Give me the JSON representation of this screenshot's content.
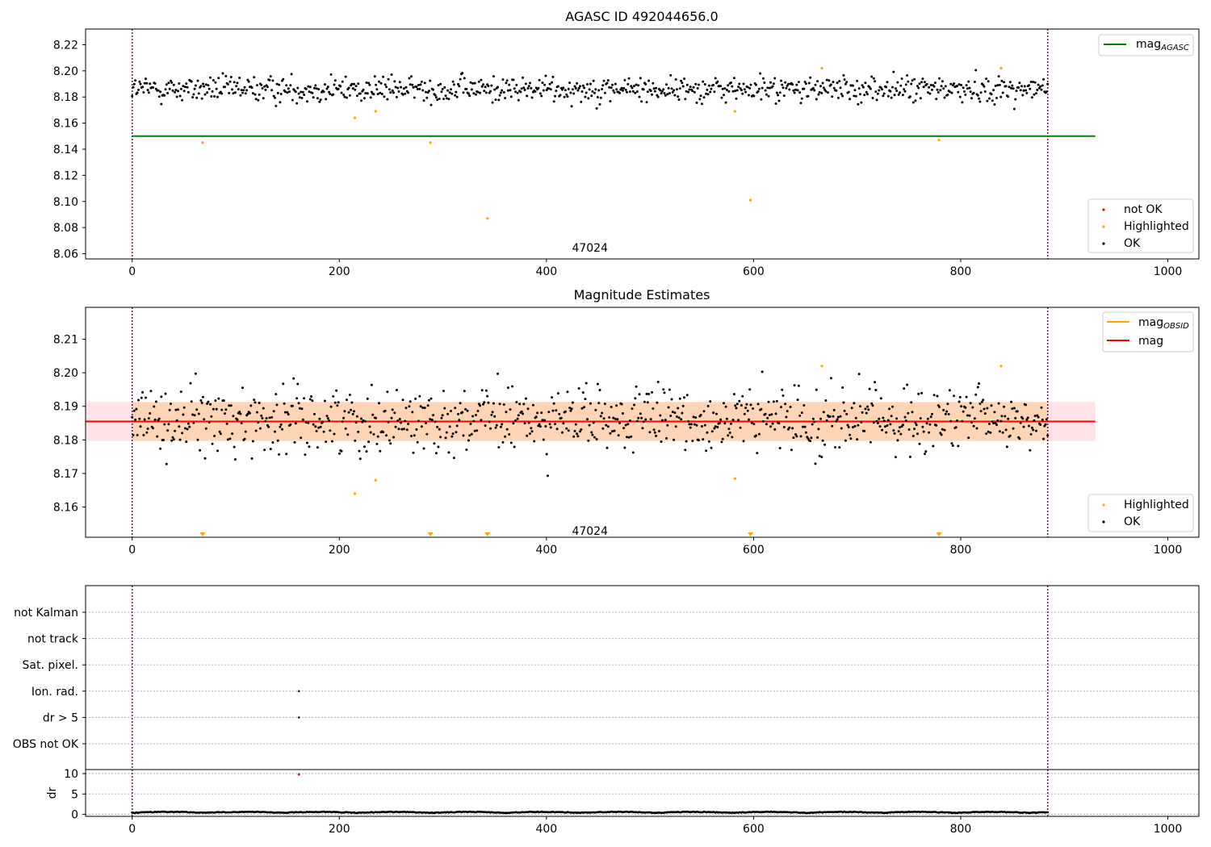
{
  "colors": {
    "ok": "#000000",
    "highlighted": "#ffa500",
    "not_ok": "#ff0000",
    "mag_agasc": "#008000",
    "mag_obsid": "#ffa500",
    "mag": "#ff0000",
    "band_outer": "#ffc0cb",
    "band_inner": "#ffa500",
    "obs_boundary": "#800080"
  },
  "chart_data": [
    {
      "type": "scatter",
      "title": "AGASC ID 492044656.0",
      "xlim": [
        -45,
        1030
      ],
      "ylim": [
        8.056,
        8.232
      ],
      "xticks": [
        "0",
        "200",
        "400",
        "600",
        "800",
        "1000"
      ],
      "yticks": [
        "8.06",
        "8.08",
        "8.10",
        "8.12",
        "8.14",
        "8.16",
        "8.18",
        "8.20",
        "8.22"
      ],
      "annotation": {
        "text": "47024",
        "x": 442,
        "y": 8.064
      },
      "obs_boundaries": [
        0,
        884
      ],
      "mag_agasc": {
        "value": 8.15,
        "x_range": [
          0,
          930
        ]
      },
      "ok_band": {
        "center": 8.186,
        "spread": 0.0055
      },
      "ok_range": [
        0,
        884
      ],
      "ok_count": 880,
      "highlighted": [
        [
          68,
          8.145
        ],
        [
          215,
          8.164
        ],
        [
          235,
          8.169
        ],
        [
          288,
          8.145
        ],
        [
          343,
          8.087
        ],
        [
          582,
          8.169
        ],
        [
          597,
          8.101
        ],
        [
          666,
          8.202
        ],
        [
          779,
          8.147
        ],
        [
          839,
          8.202
        ]
      ],
      "legend_lines": [
        {
          "name": "mag",
          "sub": "AGASC",
          "color": "#008000"
        }
      ],
      "legend_points": [
        {
          "name": "not OK",
          "color": "#ff0000"
        },
        {
          "name": "Highlighted",
          "color": "#ffa500"
        },
        {
          "name": "OK",
          "color": "#000000"
        }
      ]
    },
    {
      "type": "scatter",
      "title": "Magnitude Estimates",
      "xlim": [
        -45,
        1030
      ],
      "ylim": [
        8.151,
        8.2195
      ],
      "xticks": [
        "0",
        "200",
        "400",
        "600",
        "800",
        "1000"
      ],
      "yticks": [
        "8.16",
        "8.17",
        "8.18",
        "8.19",
        "8.20",
        "8.21"
      ],
      "annotation": {
        "text": "47024",
        "x": 442,
        "y": 8.1527
      },
      "obs_boundaries": [
        0,
        884
      ],
      "mag": {
        "value": 8.1855,
        "x_range": [
          -45,
          930
        ]
      },
      "mag_obsid": {
        "value": 8.1855,
        "x_range": [
          0,
          884
        ]
      },
      "band_outer": {
        "lo": 8.1797,
        "hi": 8.1913,
        "x_range": [
          -45,
          930
        ]
      },
      "band_inner": {
        "lo": 8.1797,
        "hi": 8.1913,
        "x_range": [
          0,
          884
        ]
      },
      "ok_band": {
        "center": 8.186,
        "spread": 0.0055
      },
      "ok_range": [
        0,
        884
      ],
      "ok_count": 880,
      "highlighted": [
        [
          215,
          8.164
        ],
        [
          235,
          8.168
        ],
        [
          582,
          8.1685
        ],
        [
          666,
          8.202
        ],
        [
          839,
          8.202
        ]
      ],
      "below_range_markers": [
        68,
        288,
        343,
        597,
        779
      ],
      "legend_lines": [
        {
          "name": "mag",
          "sub": "OBSID",
          "color": "#ffa500"
        },
        {
          "name": "mag",
          "sub": "",
          "color": "#ff0000"
        }
      ],
      "legend_points": [
        {
          "name": "Highlighted",
          "color": "#ffa500"
        },
        {
          "name": "OK",
          "color": "#000000"
        }
      ]
    },
    {
      "type": "scatter",
      "xlim": [
        -45,
        1030
      ],
      "categories": [
        "not Kalman",
        "not track",
        "Sat. pixel.",
        "Ion. rad.",
        "dr > 5",
        "OBS not OK"
      ],
      "flag_points": [
        {
          "category": "Ion. rad.",
          "x": 161
        },
        {
          "category": "dr > 5",
          "x": 161
        }
      ],
      "obs_boundaries": [
        0,
        884
      ]
    },
    {
      "type": "scatter",
      "ylabel": "dr",
      "xlim": [
        -45,
        1030
      ],
      "ylim": [
        -0.5,
        11
      ],
      "xticks": [
        "0",
        "200",
        "400",
        "600",
        "800",
        "1000"
      ],
      "yticks": [
        "0",
        "5",
        "10"
      ],
      "obs_boundaries": [
        0,
        884
      ],
      "dr_baseline": {
        "range": [
          0,
          884
        ],
        "level": 0.3,
        "amplitude": 0.35
      },
      "not_ok_points": [
        [
          161,
          9.8
        ]
      ]
    }
  ]
}
